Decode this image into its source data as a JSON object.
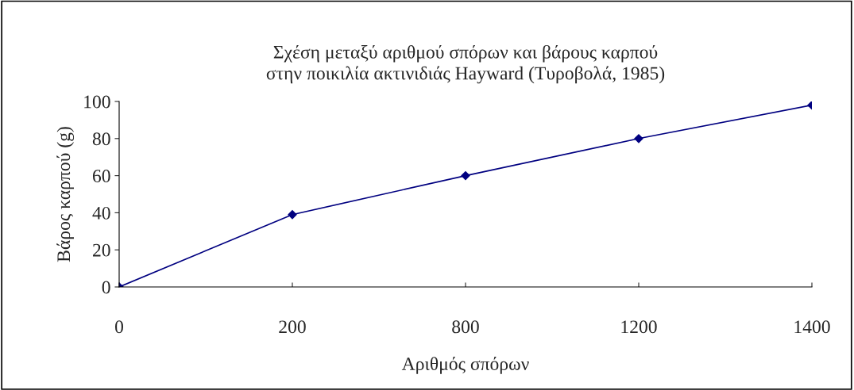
{
  "chart_data": {
    "type": "line",
    "title": "Σχέση μεταξύ αριθμού σπόρων και βάρους καρπού\nστην ποικιλία ακτινιδιάς Hayward (Τυροβολά, 1985)",
    "xlabel": "Αριθμός σπόρων",
    "ylabel": "Βάρος καρπού (g)",
    "categories": [
      "0",
      "200",
      "800",
      "1200",
      "1400"
    ],
    "series": [
      {
        "color": "#000080",
        "values": [
          0,
          39,
          60,
          80,
          98
        ]
      }
    ],
    "ylim": [
      0,
      100
    ],
    "yticks": [
      0,
      20,
      40,
      60,
      80,
      100
    ],
    "grid": false,
    "legend": false,
    "marker": "diamond",
    "line_style": "solid"
  }
}
